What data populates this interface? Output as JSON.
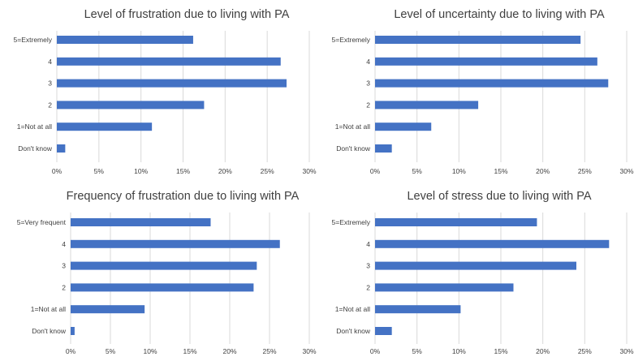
{
  "chart_data": [
    {
      "type": "bar",
      "orientation": "horizontal",
      "title": "Level of frustration due to living with PA",
      "categories": [
        "5=Extremely",
        "4",
        "3",
        "2",
        "1=Not at all",
        "Don't know"
      ],
      "values": [
        16.2,
        26.6,
        27.3,
        17.5,
        11.3,
        1.0
      ],
      "xlim": [
        0,
        30
      ],
      "xticks": [
        "0%",
        "5%",
        "10%",
        "15%",
        "20%",
        "25%",
        "30%"
      ],
      "grid": true,
      "color": "#4472c4"
    },
    {
      "type": "bar",
      "orientation": "horizontal",
      "title": "Level of uncertainty due to living with PA",
      "categories": [
        "5=Extremely",
        "4",
        "3",
        "2",
        "1=Not at all",
        "Don't know"
      ],
      "values": [
        24.5,
        26.5,
        27.8,
        12.3,
        6.7,
        2.0
      ],
      "xlim": [
        0,
        30
      ],
      "xticks": [
        "0%",
        "5%",
        "10%",
        "15%",
        "20%",
        "25%",
        "30%"
      ],
      "grid": true,
      "color": "#4472c4"
    },
    {
      "type": "bar",
      "orientation": "horizontal",
      "title": "Frequency of frustration due to living with PA",
      "categories": [
        "5=Very frequent",
        "4",
        "3",
        "2",
        "1=Not at all",
        "Don't know"
      ],
      "values": [
        17.6,
        26.3,
        23.4,
        23.0,
        9.3,
        0.5
      ],
      "xlim": [
        0,
        30
      ],
      "xticks": [
        "0%",
        "5%",
        "10%",
        "15%",
        "20%",
        "25%",
        "30%"
      ],
      "grid": true,
      "color": "#4472c4"
    },
    {
      "type": "bar",
      "orientation": "horizontal",
      "title": "Level of stress due to living with PA",
      "categories": [
        "5=Extremely",
        "4",
        "3",
        "2",
        "1=Not at all",
        "Don't know"
      ],
      "values": [
        19.3,
        27.9,
        24.0,
        16.5,
        10.2,
        2.0
      ],
      "xlim": [
        0,
        30
      ],
      "xticks": [
        "0%",
        "5%",
        "10%",
        "15%",
        "20%",
        "25%",
        "30%"
      ],
      "grid": true,
      "color": "#4472c4"
    }
  ]
}
